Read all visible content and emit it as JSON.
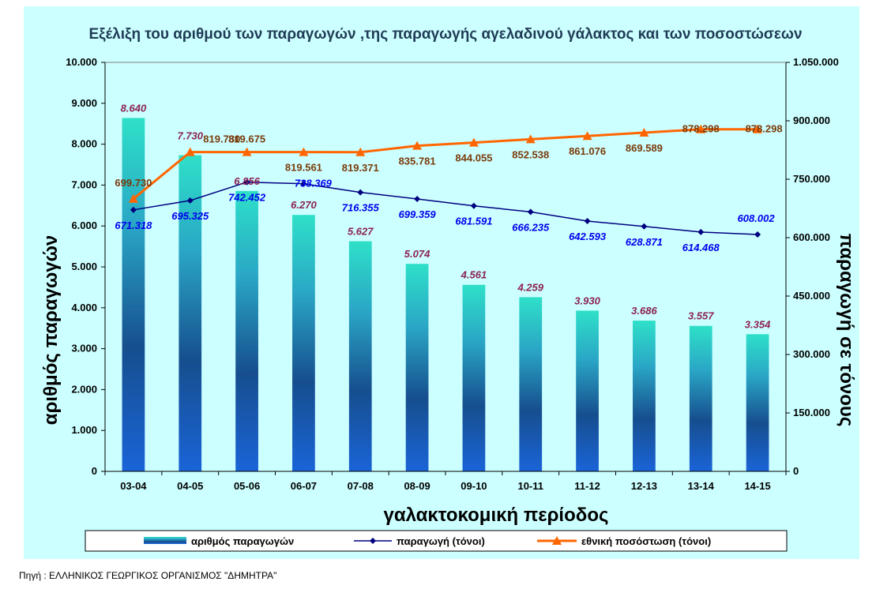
{
  "chart_data": {
    "type": "bar",
    "title": "Εξέλιξη του αριθμού των παραγωγών ,της παραγωγής αγελαδινού γάλακτος  και των ποσοστώσεων",
    "xlabel": "γαλακτοκομική περίοδος",
    "ylabel": "αριθμός παραγωγών",
    "y2label": "παραγωγή σε τόνους",
    "categories": [
      "03-04",
      "04-05",
      "05-06",
      "06-07",
      "07-08",
      "08-09",
      "09-10",
      "10-11",
      "11-12",
      "12-13",
      "13-14",
      "14-15"
    ],
    "ylim": [
      0,
      10000
    ],
    "y2lim": [
      0,
      1050000
    ],
    "y_ticks": [
      "0",
      "1.000",
      "2.000",
      "3.000",
      "4.000",
      "5.000",
      "6.000",
      "7.000",
      "8.000",
      "9.000",
      "10.000"
    ],
    "y2_ticks": [
      "0",
      "150.000",
      "300.000",
      "450.000",
      "600.000",
      "750.000",
      "900.000",
      "1.050.000"
    ],
    "series": [
      {
        "name": "αριθμός  παραγωγών",
        "kind": "bar",
        "axis": "left",
        "values": [
          8640,
          7730,
          6856,
          6270,
          5627,
          5074,
          4561,
          4259,
          3930,
          3686,
          3557,
          3354
        ],
        "labels": [
          "8.640",
          "7.730",
          "6.856",
          "6.270",
          "5.627",
          "5.074",
          "4.561",
          "4.259",
          "3.930",
          "3.686",
          "3.557",
          "3.354"
        ],
        "color": "#1060b0"
      },
      {
        "name": "παραγωγή (τόνοι)",
        "kind": "line",
        "axis": "right",
        "marker": "diamond",
        "values": [
          671318,
          695325,
          742452,
          738369,
          716355,
          699359,
          681591,
          666235,
          642593,
          628871,
          614468,
          608002
        ],
        "labels": [
          "671.318",
          "695.325",
          "742.452",
          "738.369",
          "716.355",
          "699.359",
          "681.591",
          "666.235",
          "642.593",
          "628.871",
          "614.468",
          "608.002"
        ],
        "color": "#000080"
      },
      {
        "name": "εθνική  ποσόστωση (τόνοι)",
        "kind": "line",
        "axis": "right",
        "marker": "triangle",
        "values": [
          699730,
          819730,
          819675,
          819561,
          819371,
          835781,
          844055,
          852538,
          861076,
          869589,
          878298,
          878298
        ],
        "labels": [
          "699.730",
          "819.730",
          "819.675",
          "819.561",
          "819.371",
          "835.781",
          "844.055",
          "852.538",
          "861.076",
          "869.589",
          "878.298",
          "878.298"
        ],
        "color": "#ff6600"
      }
    ],
    "legend_position": "bottom",
    "grid": false
  },
  "source": "Πηγή : ΕΛΛΗΝΙΚΟΣ ΓΕΩΡΓΙΚΟΣ ΟΡΓΑΝΙΣΜΟΣ \"ΔΗΜΗΤΡΑ\""
}
